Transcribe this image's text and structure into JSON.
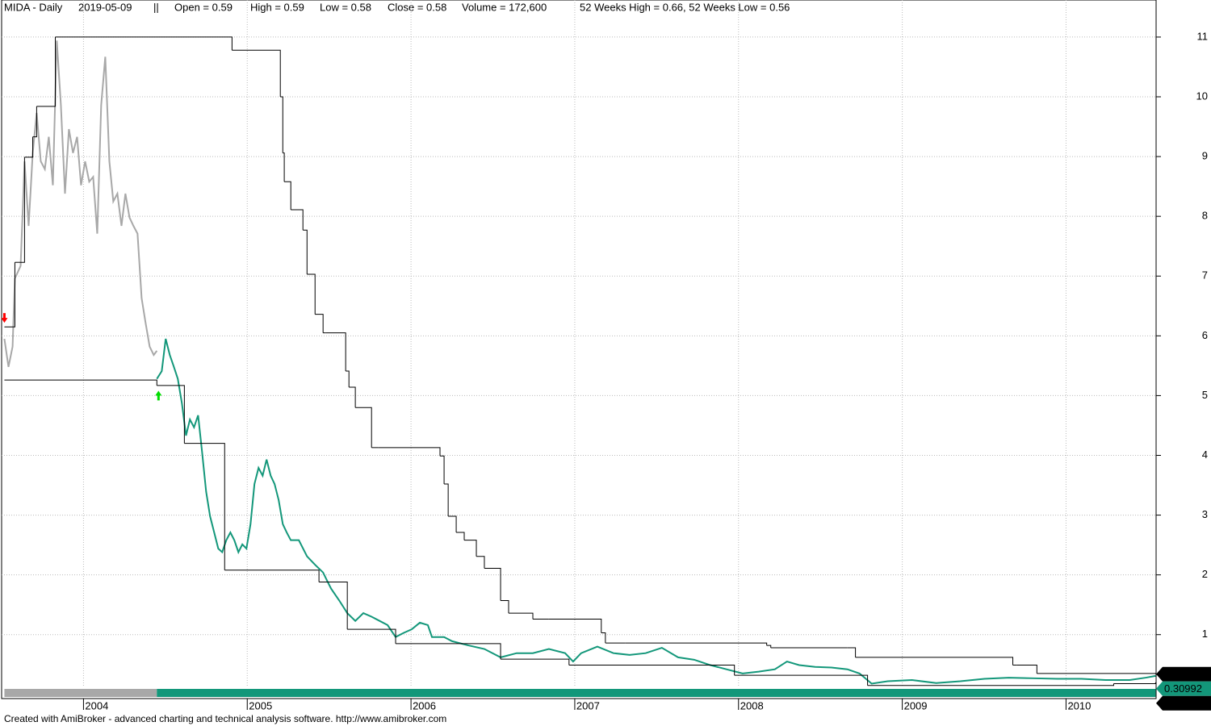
{
  "header": [
    "MIDA - Daily",
    "2019-05-09",
    "||",
    "Open = 0.59",
    "High = 0.59",
    "Low = 0.58",
    "Close = 0.58",
    "Volume = 172,600",
    "52 Weeks High = 0.66, 52 Weeks Low = 0.56"
  ],
  "footer": "Created with AmiBroker - advanced charting and technical analysis software. http://www.amibroker.com",
  "chart_data": {
    "type": "line",
    "xlim": [
      2003.5,
      2010.55
    ],
    "xticks": [
      2004,
      2005,
      2006,
      2007,
      2008,
      2009,
      2010
    ],
    "ylim": [
      -0.07,
      11.62
    ],
    "yticks": [
      1,
      2,
      3,
      4,
      5,
      6,
      7,
      8,
      9,
      10,
      11
    ],
    "grid": true,
    "series": [
      {
        "color": "#a8a8a8",
        "step": false,
        "end_label": false,
        "x": [
          2003.517,
          2003.542,
          2003.567,
          2003.581,
          2003.616,
          2003.64,
          2003.665,
          2003.69,
          2003.714,
          2003.739,
          2003.764,
          2003.788,
          2003.813,
          2003.837,
          2003.862,
          2003.887,
          2003.911,
          2003.936,
          2003.961,
          2003.985,
          2004.01,
          2004.035,
          2004.059,
          2004.084,
          2004.108,
          2004.133,
          2004.158,
          2004.182,
          2004.207,
          2004.232,
          2004.256,
          2004.281,
          2004.305,
          2004.33,
          2004.355,
          2004.379,
          2004.404,
          2004.429,
          2004.448
        ],
        "values": [
          5.95,
          5.48,
          5.82,
          6.96,
          7.17,
          8.92,
          7.84,
          9.06,
          9.73,
          8.92,
          8.79,
          9.33,
          8.52,
          10.94,
          9.86,
          8.38,
          9.46,
          9.06,
          9.33,
          8.52,
          8.92,
          8.58,
          8.66,
          7.71,
          9.86,
          10.67,
          8.92,
          8.25,
          8.38,
          7.84,
          8.38,
          7.98,
          7.84,
          7.71,
          6.63,
          6.22,
          5.82,
          5.68,
          5.75
        ]
      },
      {
        "color": "#13977a",
        "step": false,
        "end_label": true,
        "x": [
          2004.448,
          2004.478,
          2004.502,
          2004.527,
          2004.552,
          2004.576,
          2004.601,
          2004.626,
          2004.65,
          2004.675,
          2004.7,
          2004.724,
          2004.749,
          2004.773,
          2004.798,
          2004.823,
          2004.847,
          2004.872,
          2004.897,
          2004.921,
          2004.946,
          2004.97,
          2004.995,
          2005.02,
          2005.044,
          2005.069,
          2005.094,
          2005.118,
          2005.143,
          2005.167,
          2005.192,
          2005.217,
          2005.241,
          2005.266,
          2005.315,
          2005.365,
          2005.414,
          2005.463,
          2005.488,
          2005.512,
          2005.562,
          2005.611,
          2005.66,
          2005.709,
          2005.759,
          2005.808,
          2005.857,
          2005.906,
          2005.956,
          2006.005,
          2006.054,
          2006.103,
          2006.128,
          2006.202,
          2006.251,
          2006.35,
          2006.448,
          2006.547,
          2006.645,
          2006.744,
          2006.842,
          2006.941,
          2006.99,
          2007.039,
          2007.138,
          2007.236,
          2007.335,
          2007.433,
          2007.532,
          2007.631,
          2007.729,
          2007.828,
          2007.926,
          2008.025,
          2008.123,
          2008.222,
          2008.296,
          2008.37,
          2008.468,
          2008.567,
          2008.665,
          2008.739,
          2008.813,
          2008.911,
          2009.059,
          2009.207,
          2009.355,
          2009.502,
          2009.65,
          2009.798,
          2009.946,
          2010.094,
          2010.241,
          2010.389,
          2010.488,
          2010.547
        ],
        "values": [
          5.28,
          5.41,
          5.95,
          5.68,
          5.48,
          5.28,
          4.87,
          4.33,
          4.6,
          4.47,
          4.67,
          4.06,
          3.39,
          2.98,
          2.71,
          2.44,
          2.38,
          2.58,
          2.71,
          2.58,
          2.38,
          2.51,
          2.44,
          2.85,
          3.52,
          3.79,
          3.66,
          3.93,
          3.66,
          3.52,
          3.25,
          2.85,
          2.71,
          2.58,
          2.58,
          2.31,
          2.17,
          2.04,
          1.9,
          1.77,
          1.57,
          1.36,
          1.23,
          1.36,
          1.3,
          1.23,
          1.16,
          0.96,
          1.03,
          1.09,
          1.2,
          1.16,
          0.96,
          0.96,
          0.89,
          0.82,
          0.76,
          0.62,
          0.69,
          0.69,
          0.76,
          0.69,
          0.55,
          0.69,
          0.8,
          0.69,
          0.66,
          0.69,
          0.78,
          0.62,
          0.58,
          0.49,
          0.42,
          0.35,
          0.38,
          0.42,
          0.55,
          0.49,
          0.46,
          0.45,
          0.42,
          0.35,
          0.18,
          0.22,
          0.24,
          0.19,
          0.22,
          0.26,
          0.28,
          0.27,
          0.26,
          0.26,
          0.24,
          0.24,
          0.28,
          0.30992
        ]
      },
      {
        "color": "#000000",
        "step": true,
        "end_label": true,
        "x": [
          2003.517,
          2003.581,
          2003.616,
          2003.64,
          2003.69,
          2003.714,
          2003.828,
          2004.907,
          2005.202,
          2005.217,
          2005.226,
          2005.266,
          2005.34,
          2005.365,
          2005.414,
          2005.463,
          2005.478,
          2005.601,
          2005.621,
          2005.66,
          2005.759,
          2005.798,
          2006.177,
          2006.202,
          2006.227,
          2006.276,
          2006.325,
          2006.399,
          2006.448,
          2006.547,
          2006.596,
          2006.744,
          2006.842,
          2007.162,
          2007.187,
          2007.31,
          2008.172,
          2008.197,
          2008.665,
          2008.714,
          2009.675,
          2009.699,
          2009.822,
          2010.547
        ],
        "values": [
          6.15,
          7.23,
          7.23,
          8.99,
          9.33,
          9.84,
          11.0,
          10.78,
          10.0,
          9.06,
          8.58,
          8.11,
          7.77,
          7.03,
          6.36,
          6.05,
          6.05,
          5.41,
          5.14,
          4.8,
          4.13,
          4.13,
          3.99,
          3.52,
          2.98,
          2.71,
          2.58,
          2.31,
          2.11,
          1.57,
          1.36,
          1.26,
          1.26,
          1.03,
          0.86,
          0.86,
          0.82,
          0.78,
          0.78,
          0.62,
          0.49,
          0.49,
          0.35,
          0.33885
        ]
      },
      {
        "color": "#000000",
        "step": true,
        "end_label": true,
        "x": [
          2003.517,
          2004.448,
          2004.616,
          2004.862,
          2005.438,
          2005.611,
          2005.906,
          2006.547,
          2006.965,
          2007.975,
          2008.788,
          2010.291,
          2010.547
        ],
        "values": [
          5.26,
          5.17,
          4.2,
          2.08,
          1.88,
          1.09,
          0.85,
          0.59,
          0.49,
          0.32,
          0.15,
          0.18,
          0.20248
        ]
      }
    ],
    "markers": [
      {
        "x": 2003.517,
        "y": 6.3,
        "color": "#ff0000",
        "symbol": "arrow-down"
      },
      {
        "x": 2004.458,
        "y": 5.0,
        "color": "#00dd00",
        "symbol": "arrow-up"
      }
    ]
  }
}
